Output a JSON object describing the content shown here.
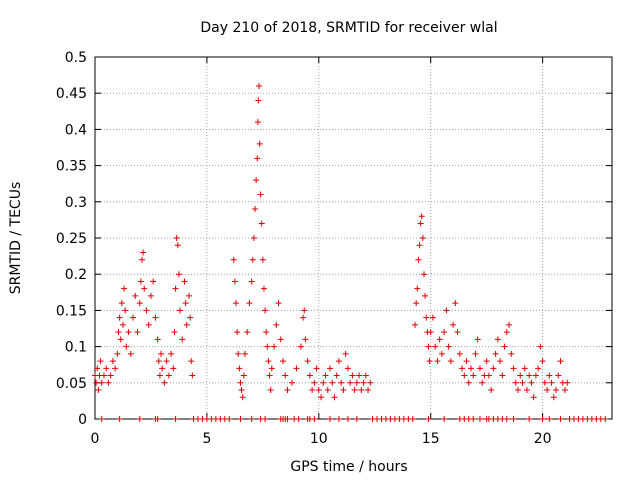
{
  "chart_data": {
    "type": "scatter",
    "title": "Day 210 of 2018, SRMTID for receiver wlal",
    "xlabel": "GPS time / hours",
    "ylabel": "SRMTID / TECUs",
    "xlim": [
      0,
      23.1
    ],
    "ylim": [
      0,
      0.5
    ],
    "x_ticks": [
      0,
      5,
      10,
      15,
      20
    ],
    "x_tick_labels": [
      "0",
      "5",
      "10",
      "15",
      "20"
    ],
    "y_ticks": [
      0,
      0.05,
      0.1,
      0.15,
      0.2,
      0.25,
      0.3,
      0.35,
      0.4,
      0.45,
      0.5
    ],
    "y_tick_labels": [
      "0",
      "0.05",
      "0.1",
      "0.15",
      "0.2",
      "0.25",
      "0.3",
      "0.35",
      "0.4",
      "0.45",
      "0.5"
    ],
    "grid": true,
    "marker": "+",
    "marker_color": "#e00000",
    "series": [
      {
        "name": "SRMTID",
        "points": [
          [
            0.0,
            0.06
          ],
          [
            0.05,
            0.05
          ],
          [
            0.1,
            0.07
          ],
          [
            0.15,
            0.04
          ],
          [
            0.2,
            0.06
          ],
          [
            0.25,
            0.08
          ],
          [
            0.3,
            0.05
          ],
          [
            0.4,
            0.06
          ],
          [
            0.5,
            0.07
          ],
          [
            0.6,
            0.05
          ],
          [
            0.7,
            0.06
          ],
          [
            0.8,
            0.08
          ],
          [
            0.9,
            0.07
          ],
          [
            1.0,
            0.09
          ],
          [
            1.05,
            0.12
          ],
          [
            1.1,
            0.14
          ],
          [
            1.15,
            0.11
          ],
          [
            1.2,
            0.16
          ],
          [
            1.25,
            0.13
          ],
          [
            1.3,
            0.18
          ],
          [
            1.35,
            0.15
          ],
          [
            1.4,
            0.1
          ],
          [
            1.5,
            0.12
          ],
          [
            1.6,
            0.09
          ],
          [
            1.7,
            0.14
          ],
          [
            1.8,
            0.17
          ],
          [
            1.9,
            0.12
          ],
          [
            2.0,
            0.16
          ],
          [
            2.05,
            0.19
          ],
          [
            2.1,
            0.22
          ],
          [
            2.15,
            0.23
          ],
          [
            2.2,
            0.18
          ],
          [
            2.3,
            0.15
          ],
          [
            2.4,
            0.13
          ],
          [
            2.5,
            0.17
          ],
          [
            2.6,
            0.19
          ],
          [
            2.7,
            0.14
          ],
          [
            2.8,
            0.11
          ],
          [
            2.85,
            0.08
          ],
          [
            2.9,
            0.06
          ],
          [
            2.95,
            0.09
          ],
          [
            3.0,
            0.07
          ],
          [
            3.1,
            0.05
          ],
          [
            3.2,
            0.08
          ],
          [
            3.3,
            0.06
          ],
          [
            3.4,
            0.09
          ],
          [
            3.5,
            0.07
          ],
          [
            3.55,
            0.12
          ],
          [
            3.6,
            0.18
          ],
          [
            3.65,
            0.25
          ],
          [
            3.7,
            0.24
          ],
          [
            3.75,
            0.2
          ],
          [
            3.8,
            0.15
          ],
          [
            3.9,
            0.11
          ],
          [
            4.0,
            0.19
          ],
          [
            4.05,
            0.16
          ],
          [
            4.1,
            0.13
          ],
          [
            4.2,
            0.17
          ],
          [
            4.25,
            0.14
          ],
          [
            4.3,
            0.08
          ],
          [
            4.35,
            0.06
          ],
          [
            6.2,
            0.22
          ],
          [
            6.25,
            0.19
          ],
          [
            6.3,
            0.16
          ],
          [
            6.35,
            0.12
          ],
          [
            6.4,
            0.09
          ],
          [
            6.45,
            0.07
          ],
          [
            6.5,
            0.05
          ],
          [
            6.55,
            0.04
          ],
          [
            6.6,
            0.03
          ],
          [
            6.65,
            0.06
          ],
          [
            6.7,
            0.09
          ],
          [
            6.8,
            0.12
          ],
          [
            6.9,
            0.16
          ],
          [
            7.0,
            0.19
          ],
          [
            7.05,
            0.22
          ],
          [
            7.1,
            0.25
          ],
          [
            7.15,
            0.29
          ],
          [
            7.2,
            0.33
          ],
          [
            7.25,
            0.36
          ],
          [
            7.28,
            0.41
          ],
          [
            7.3,
            0.44
          ],
          [
            7.33,
            0.46
          ],
          [
            7.36,
            0.38
          ],
          [
            7.4,
            0.31
          ],
          [
            7.45,
            0.27
          ],
          [
            7.5,
            0.22
          ],
          [
            7.55,
            0.18
          ],
          [
            7.6,
            0.15
          ],
          [
            7.65,
            0.12
          ],
          [
            7.7,
            0.1
          ],
          [
            7.75,
            0.08
          ],
          [
            7.8,
            0.06
          ],
          [
            7.85,
            0.04
          ],
          [
            7.9,
            0.07
          ],
          [
            8.0,
            0.1
          ],
          [
            8.1,
            0.13
          ],
          [
            8.2,
            0.16
          ],
          [
            8.3,
            0.11
          ],
          [
            8.4,
            0.08
          ],
          [
            8.5,
            0.06
          ],
          [
            8.6,
            0.04
          ],
          [
            8.8,
            0.05
          ],
          [
            9.0,
            0.07
          ],
          [
            9.2,
            0.1
          ],
          [
            9.3,
            0.14
          ],
          [
            9.35,
            0.15
          ],
          [
            9.4,
            0.11
          ],
          [
            9.5,
            0.08
          ],
          [
            9.6,
            0.06
          ],
          [
            9.7,
            0.04
          ],
          [
            9.8,
            0.05
          ],
          [
            9.9,
            0.07
          ],
          [
            10.0,
            0.04
          ],
          [
            10.1,
            0.03
          ],
          [
            10.2,
            0.05
          ],
          [
            10.3,
            0.06
          ],
          [
            10.4,
            0.04
          ],
          [
            10.5,
            0.07
          ],
          [
            10.6,
            0.05
          ],
          [
            10.7,
            0.03
          ],
          [
            10.8,
            0.06
          ],
          [
            10.9,
            0.08
          ],
          [
            11.0,
            0.05
          ],
          [
            11.1,
            0.04
          ],
          [
            11.2,
            0.09
          ],
          [
            11.3,
            0.07
          ],
          [
            11.4,
            0.05
          ],
          [
            11.5,
            0.06
          ],
          [
            11.6,
            0.04
          ],
          [
            11.7,
            0.05
          ],
          [
            11.8,
            0.06
          ],
          [
            11.9,
            0.04
          ],
          [
            12.0,
            0.05
          ],
          [
            12.1,
            0.06
          ],
          [
            12.2,
            0.04
          ],
          [
            12.3,
            0.05
          ],
          [
            14.3,
            0.13
          ],
          [
            14.35,
            0.16
          ],
          [
            14.4,
            0.18
          ],
          [
            14.45,
            0.22
          ],
          [
            14.5,
            0.24
          ],
          [
            14.55,
            0.27
          ],
          [
            14.6,
            0.28
          ],
          [
            14.65,
            0.25
          ],
          [
            14.7,
            0.2
          ],
          [
            14.75,
            0.17
          ],
          [
            14.8,
            0.14
          ],
          [
            14.85,
            0.12
          ],
          [
            14.9,
            0.1
          ],
          [
            14.95,
            0.08
          ],
          [
            15.0,
            0.12
          ],
          [
            15.1,
            0.14
          ],
          [
            15.2,
            0.1
          ],
          [
            15.3,
            0.08
          ],
          [
            15.4,
            0.11
          ],
          [
            15.5,
            0.09
          ],
          [
            15.6,
            0.12
          ],
          [
            15.7,
            0.15
          ],
          [
            15.8,
            0.1
          ],
          [
            15.9,
            0.08
          ],
          [
            16.0,
            0.13
          ],
          [
            16.1,
            0.16
          ],
          [
            16.2,
            0.12
          ],
          [
            16.3,
            0.09
          ],
          [
            16.4,
            0.07
          ],
          [
            16.5,
            0.06
          ],
          [
            16.6,
            0.08
          ],
          [
            16.7,
            0.05
          ],
          [
            16.8,
            0.07
          ],
          [
            16.9,
            0.06
          ],
          [
            17.0,
            0.09
          ],
          [
            17.1,
            0.11
          ],
          [
            17.2,
            0.07
          ],
          [
            17.3,
            0.05
          ],
          [
            17.4,
            0.06
          ],
          [
            17.5,
            0.08
          ],
          [
            17.6,
            0.06
          ],
          [
            17.7,
            0.04
          ],
          [
            17.8,
            0.07
          ],
          [
            17.9,
            0.09
          ],
          [
            18.0,
            0.11
          ],
          [
            18.1,
            0.08
          ],
          [
            18.2,
            0.06
          ],
          [
            18.3,
            0.1
          ],
          [
            18.4,
            0.12
          ],
          [
            18.5,
            0.13
          ],
          [
            18.6,
            0.09
          ],
          [
            18.7,
            0.07
          ],
          [
            18.8,
            0.05
          ],
          [
            18.9,
            0.04
          ],
          [
            19.0,
            0.06
          ],
          [
            19.1,
            0.05
          ],
          [
            19.2,
            0.07
          ],
          [
            19.3,
            0.04
          ],
          [
            19.4,
            0.06
          ],
          [
            19.5,
            0.05
          ],
          [
            19.6,
            0.03
          ],
          [
            19.7,
            0.06
          ],
          [
            19.8,
            0.07
          ],
          [
            19.9,
            0.1
          ],
          [
            20.0,
            0.08
          ],
          [
            20.1,
            0.05
          ],
          [
            20.2,
            0.04
          ],
          [
            20.3,
            0.06
          ],
          [
            20.4,
            0.05
          ],
          [
            20.5,
            0.03
          ],
          [
            20.6,
            0.04
          ],
          [
            20.7,
            0.06
          ],
          [
            20.8,
            0.08
          ],
          [
            20.9,
            0.05
          ],
          [
            21.0,
            0.04
          ],
          [
            21.1,
            0.05
          ],
          [
            0.3,
            0
          ],
          [
            1.1,
            0
          ],
          [
            2.0,
            0
          ],
          [
            2.7,
            0
          ],
          [
            2.8,
            0
          ],
          [
            3.6,
            0
          ],
          [
            4.4,
            0
          ],
          [
            4.6,
            0
          ],
          [
            4.8,
            0
          ],
          [
            5.0,
            0
          ],
          [
            5.2,
            0
          ],
          [
            5.4,
            0
          ],
          [
            5.6,
            0
          ],
          [
            5.8,
            0
          ],
          [
            6.0,
            0
          ],
          [
            6.5,
            0
          ],
          [
            7.0,
            0
          ],
          [
            7.4,
            0
          ],
          [
            7.6,
            0
          ],
          [
            8.3,
            0
          ],
          [
            8.4,
            0
          ],
          [
            8.5,
            0
          ],
          [
            8.6,
            0
          ],
          [
            8.9,
            0
          ],
          [
            9.1,
            0
          ],
          [
            9.5,
            0
          ],
          [
            9.6,
            0
          ],
          [
            9.8,
            0
          ],
          [
            10.5,
            0
          ],
          [
            10.9,
            0
          ],
          [
            11.3,
            0
          ],
          [
            11.7,
            0
          ],
          [
            12.4,
            0
          ],
          [
            12.6,
            0
          ],
          [
            12.8,
            0
          ],
          [
            13.0,
            0
          ],
          [
            13.2,
            0
          ],
          [
            13.4,
            0
          ],
          [
            13.6,
            0
          ],
          [
            13.8,
            0
          ],
          [
            14.0,
            0
          ],
          [
            14.2,
            0
          ],
          [
            14.9,
            0
          ],
          [
            15.6,
            0
          ],
          [
            16.3,
            0
          ],
          [
            16.5,
            0
          ],
          [
            16.7,
            0
          ],
          [
            16.9,
            0
          ],
          [
            17.2,
            0
          ],
          [
            17.5,
            0
          ],
          [
            17.6,
            0
          ],
          [
            17.8,
            0
          ],
          [
            18.0,
            0
          ],
          [
            18.2,
            0
          ],
          [
            18.4,
            0
          ],
          [
            18.7,
            0
          ],
          [
            19.4,
            0
          ],
          [
            20.0,
            0
          ],
          [
            20.3,
            0
          ],
          [
            20.8,
            0
          ],
          [
            21.2,
            0
          ],
          [
            21.4,
            0
          ],
          [
            21.6,
            0
          ],
          [
            21.8,
            0
          ],
          [
            22.0,
            0
          ],
          [
            22.2,
            0
          ],
          [
            22.4,
            0
          ],
          [
            22.6,
            0
          ],
          [
            22.8,
            0
          ]
        ]
      }
    ]
  }
}
